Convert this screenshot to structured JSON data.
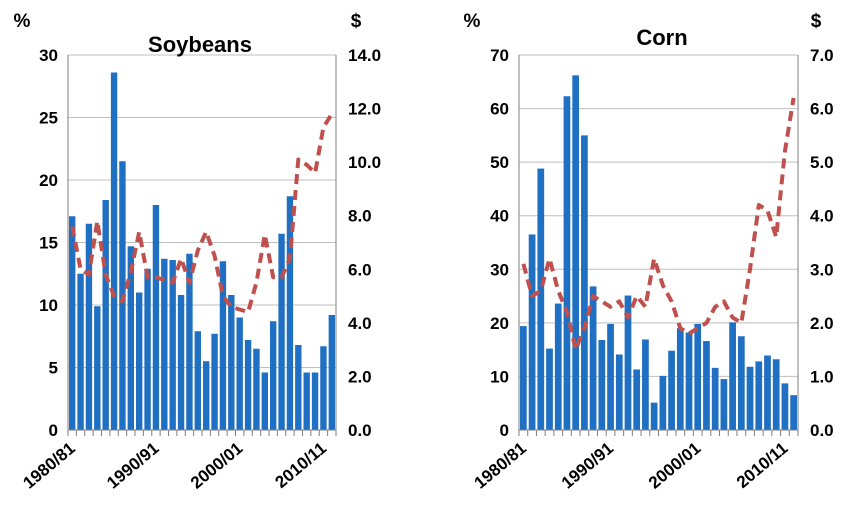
{
  "colors": {
    "bar": "#1f6fc2",
    "line": "#c0504d",
    "grid": "#bfbfbf",
    "axis": "#7f7f7f"
  },
  "chart_data": [
    {
      "type": "bar",
      "title": "Soybeans",
      "left_unit": "%",
      "right_unit": "$",
      "ylim": [
        0,
        30
      ],
      "y_ticks": [
        "0",
        "5",
        "10",
        "15",
        "20",
        "25",
        "30"
      ],
      "y2lim": [
        0,
        14
      ],
      "y2_ticks": [
        "0.0",
        "2.0",
        "4.0",
        "6.0",
        "8.0",
        "10.0",
        "12.0",
        "14.0"
      ],
      "grid": true,
      "categories": [
        "1980/81",
        "1981/82",
        "1982/83",
        "1983/84",
        "1984/85",
        "1985/86",
        "1986/87",
        "1987/88",
        "1988/89",
        "1989/90",
        "1990/91",
        "1991/92",
        "1992/93",
        "1993/94",
        "1994/95",
        "1995/96",
        "1996/97",
        "1997/98",
        "1998/99",
        "1999/00",
        "2000/01",
        "2001/02",
        "2002/03",
        "2003/04",
        "2004/05",
        "2005/06",
        "2006/07",
        "2007/08",
        "2008/09",
        "2009/10",
        "2010/11",
        "2011/12"
      ],
      "x_tick_labels": [
        {
          "index": 0,
          "label": "1980/81"
        },
        {
          "index": 10,
          "label": "1990/91"
        },
        {
          "index": 20,
          "label": "2000/01"
        },
        {
          "index": 30,
          "label": "2010/11"
        }
      ],
      "series": [
        {
          "kind": "bar",
          "axis": "left",
          "values": [
            17.1,
            12.5,
            16.5,
            9.9,
            18.4,
            28.6,
            21.5,
            14.7,
            11.0,
            12.9,
            18.0,
            13.7,
            13.6,
            10.8,
            14.1,
            7.9,
            5.5,
            7.7,
            13.5,
            10.8,
            9.0,
            7.2,
            6.5,
            4.6,
            8.7,
            15.7,
            18.7,
            6.8,
            4.6,
            4.6,
            6.7,
            9.2
          ]
        },
        {
          "kind": "line",
          "axis": "right",
          "style": "dashed",
          "values": [
            7.6,
            6.0,
            5.8,
            7.8,
            5.8,
            5.0,
            4.8,
            5.9,
            7.4,
            5.7,
            5.7,
            5.6,
            5.5,
            6.4,
            5.5,
            6.7,
            7.4,
            6.5,
            5.0,
            4.6,
            4.5,
            4.4,
            5.5,
            7.3,
            5.7,
            5.7,
            6.4,
            10.1,
            9.9,
            9.6,
            11.3,
            11.8
          ]
        }
      ]
    },
    {
      "type": "bar",
      "title": "Corn",
      "left_unit": "%",
      "right_unit": "$",
      "ylim": [
        0,
        70
      ],
      "y_ticks": [
        "0",
        "10",
        "20",
        "30",
        "40",
        "50",
        "60",
        "70"
      ],
      "y2lim": [
        0,
        7
      ],
      "y2_ticks": [
        "0.0",
        "1.0",
        "2.0",
        "3.0",
        "4.0",
        "5.0",
        "6.0",
        "7.0"
      ],
      "grid": true,
      "categories": [
        "1980/81",
        "1981/82",
        "1982/83",
        "1983/84",
        "1984/85",
        "1985/86",
        "1986/87",
        "1987/88",
        "1988/89",
        "1989/90",
        "1990/91",
        "1991/92",
        "1992/93",
        "1993/94",
        "1994/95",
        "1995/96",
        "1996/97",
        "1997/98",
        "1998/99",
        "1999/00",
        "2000/01",
        "2001/02",
        "2002/03",
        "2003/04",
        "2004/05",
        "2005/06",
        "2006/07",
        "2007/08",
        "2008/09",
        "2009/10",
        "2010/11",
        "2011/12"
      ],
      "x_tick_labels": [
        {
          "index": 0,
          "label": "1980/81"
        },
        {
          "index": 10,
          "label": "1990/91"
        },
        {
          "index": 20,
          "label": "2000/01"
        },
        {
          "index": 30,
          "label": "2010/11"
        }
      ],
      "series": [
        {
          "kind": "bar",
          "axis": "left",
          "values": [
            19.4,
            36.5,
            48.8,
            15.2,
            23.6,
            62.3,
            66.2,
            55.0,
            26.8,
            16.8,
            19.8,
            14.1,
            25.1,
            11.3,
            16.9,
            5.1,
            10.1,
            14.8,
            19.0,
            18.2,
            19.8,
            16.6,
            11.6,
            9.5,
            20.1,
            17.5,
            11.8,
            12.8,
            13.9,
            13.2,
            8.7,
            6.5
          ]
        },
        {
          "kind": "line",
          "axis": "right",
          "style": "dashed",
          "values": [
            3.1,
            2.5,
            2.6,
            3.2,
            2.6,
            2.2,
            1.5,
            1.9,
            2.5,
            2.4,
            2.3,
            2.4,
            2.1,
            2.5,
            2.3,
            3.2,
            2.7,
            2.4,
            1.9,
            1.8,
            1.9,
            2.0,
            2.3,
            2.4,
            2.1,
            2.0,
            3.0,
            4.2,
            4.1,
            3.6,
            5.2,
            6.2
          ]
        }
      ]
    }
  ]
}
